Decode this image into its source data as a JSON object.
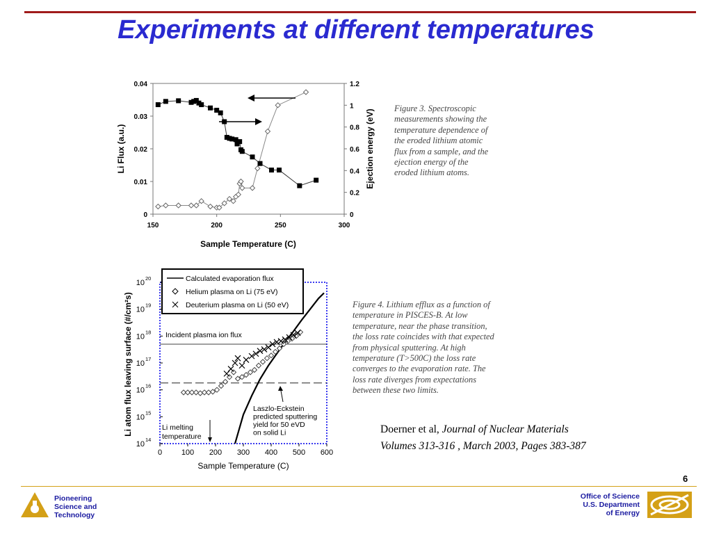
{
  "title": "Experiments at different temperatures",
  "figure3": {
    "caption": "Figure 3. Spectroscopic\nmeasurements showing the\ntemperature dependence of\nthe eroded lithium atomic\nflux from a sample, and the\nejection energy of the\neroded lithium atoms."
  },
  "figure4": {
    "caption": "Figure 4. Lithium efflux as a function of\ntemperature in PISCES-B. At low\ntemperature, near the phase transition,\nthe loss rate coincides with that expected\nfrom physical sputtering. At high\ntemperature (T>500C) the loss rate\nconverges to the evaporation rate. The\nloss rate diverges from expectations\nbetween these two limits.",
    "annotations": {
      "incident_flux": "Incident plasma ion flux",
      "laszlo": [
        "Laszlo-Eckstein",
        "predicted sputtering",
        "yield for 50 eVD",
        "on solid Li"
      ],
      "melting": [
        "Li melting",
        "temperature"
      ]
    }
  },
  "citation": {
    "authors": "Doerner et al,",
    "journal": "Journal of Nuclear Materials",
    "details": "Volumes 313-316 , March 2003, Pages 383-387"
  },
  "page_number": "6",
  "footer": {
    "left_lines": [
      "Pioneering",
      "Science and",
      "Technology"
    ],
    "right_lines": [
      "Office of Science",
      "U.S. Department",
      "of Energy"
    ]
  },
  "colors": {
    "title": "#2a2ad0",
    "top_rule": "#a01a1a",
    "footer_rule": "#d4a017",
    "footer_text": "#1a1aa0",
    "axis_blue": "#3a3af0"
  },
  "chart_data": [
    {
      "type": "scatter",
      "title": "",
      "xlabel": "Sample Temperature (C)",
      "ylabel": "Li Flux (a.u.)",
      "y2label": "Ejection energy (eV)",
      "xlim": [
        150,
        300
      ],
      "ylim": [
        0,
        0.04
      ],
      "y2lim": [
        0,
        1.2
      ],
      "x_ticks": [
        "150",
        "200",
        "250",
        "300"
      ],
      "y_ticks": [
        "0",
        "0.01",
        "0.02",
        "0.03",
        "0.04"
      ],
      "y2_ticks": [
        "0",
        "0.2",
        "0.4",
        "0.6",
        "0.8",
        "1",
        "1.2"
      ],
      "series": [
        {
          "axis": "left",
          "marker": "filled-square",
          "x": [
            154,
            160,
            170,
            180,
            182,
            184,
            186,
            188,
            195,
            200,
            203,
            206,
            208,
            210,
            212,
            215,
            216,
            218,
            219,
            220,
            228,
            234,
            243,
            249,
            265,
            278
          ],
          "y": [
            0.0335,
            0.0345,
            0.0347,
            0.0342,
            0.0345,
            0.0348,
            0.034,
            0.0335,
            0.0325,
            0.0318,
            0.031,
            0.0283,
            0.0235,
            0.0232,
            0.023,
            0.0228,
            0.0215,
            0.0222,
            0.0197,
            0.0192,
            0.0175,
            0.0155,
            0.0135,
            0.0135,
            0.0087,
            0.0104
          ]
        },
        {
          "axis": "right",
          "marker": "open-diamond",
          "x": [
            154,
            160,
            170,
            180,
            184,
            188,
            195,
            200,
            202,
            206,
            210,
            213,
            215,
            217,
            218,
            219,
            220,
            228,
            232,
            240,
            248,
            270
          ],
          "y": [
            0.07,
            0.08,
            0.08,
            0.08,
            0.08,
            0.12,
            0.07,
            0.06,
            0.06,
            0.1,
            0.14,
            0.12,
            0.16,
            0.18,
            0.28,
            0.3,
            0.24,
            0.24,
            0.42,
            0.76,
            1.0,
            1.12
          ]
        }
      ]
    },
    {
      "type": "scatter",
      "title": "",
      "xlabel": "Sample Temperature (C)",
      "ylabel": "Li atom flux leaving surface (#/cm²s)",
      "y_scale": "log",
      "xlim": [
        0,
        600
      ],
      "ylim": [
        100000000000000.0,
        1e+20
      ],
      "x_ticks": [
        "0",
        "100",
        "200",
        "300",
        "400",
        "500",
        "600"
      ],
      "y_ticks": [
        "10",
        "10",
        "10",
        "10",
        "10",
        "10",
        "10"
      ],
      "y_tick_exponents": [
        "14",
        "15",
        "16",
        "17",
        "18",
        "19",
        "20"
      ],
      "legend": {
        "position": "top",
        "entries": [
          "Calculated evaporation flux",
          "Helium plasma on Li (75 eV)",
          "Deuterium plasma on Li (50 eV)"
        ]
      },
      "reference_lines": {
        "incident_plasma_ion_flux": 5e+17,
        "sputtering_yield_level": 1.8e+16,
        "li_melting_temperature": 180
      },
      "series": [
        {
          "name": "Calculated evaporation flux",
          "style": "line",
          "x": [
            270,
            300,
            330,
            360,
            390,
            420,
            450,
            480,
            510,
            540,
            570,
            590
          ],
          "y": [
            100000000000000.0,
            1200000000000000.0,
            6000000000000000.0,
            2.5e+16,
            8e+16,
            2.2e+17,
            6e+17,
            1.5e+18,
            4e+18,
            1e+19,
            2.5e+19,
            4e+19
          ]
        },
        {
          "name": "Helium plasma on Li (75 eV)",
          "style": "open-diamond",
          "x": [
            85,
            100,
            115,
            130,
            145,
            160,
            175,
            190,
            205,
            220,
            235,
            250,
            265,
            280,
            295,
            310,
            325,
            340,
            355,
            370,
            385,
            400,
            415,
            430,
            445,
            460,
            475,
            490,
            505
          ],
          "y": [
            8000000000000000.0,
            8000000000000000.0,
            8000000000000000.0,
            8000000000000000.0,
            7500000000000000.0,
            8000000000000000.0,
            8000000000000000.0,
            8500000000000000.0,
            1e+16,
            1.4e+16,
            2e+16,
            3e+16,
            4.5e+16,
            2.6e+16,
            3e+16,
            3.6e+16,
            4.5e+16,
            5.5e+16,
            8e+16,
            1.1e+17,
            1.5e+17,
            1.9e+17,
            2.6e+17,
            3.5e+17,
            5e+17,
            6.5e+17,
            8e+17,
            1e+18,
            1.4e+18
          ]
        },
        {
          "name": "Deuterium plasma on Li (50 eV)",
          "style": "x",
          "x": [
            240,
            255,
            270,
            280,
            295,
            310,
            330,
            345,
            360,
            375,
            390,
            405,
            420,
            435,
            450,
            465,
            480,
            495
          ],
          "y": [
            4e+16,
            6e+16,
            1e+17,
            1.5e+17,
            8e+16,
            1.3e+17,
            1.8e+17,
            2.2e+17,
            2.8e+17,
            3.2e+17,
            3.8e+17,
            5e+17,
            6e+17,
            6.5e+17,
            7.5e+17,
            9e+17,
            1.1e+18,
            1.3e+18
          ]
        }
      ]
    }
  ]
}
